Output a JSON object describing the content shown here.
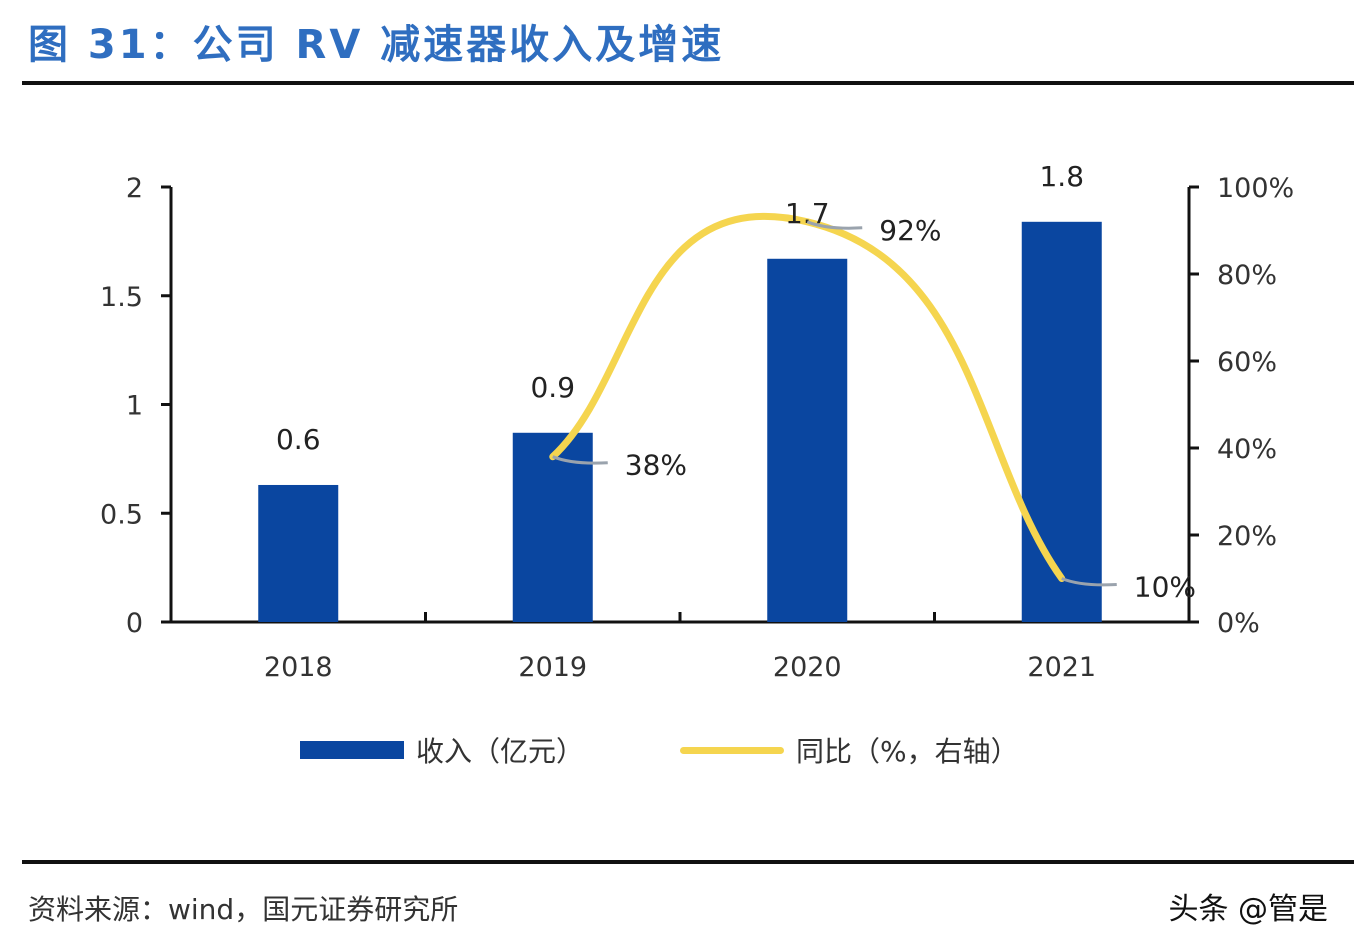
{
  "title": "图 31：公司 RV 减速器收入及增速",
  "chart_data": {
    "type": "bar+line",
    "title": "图 31：公司 RV 减速器收入及增速",
    "categories": [
      "2018",
      "2019",
      "2020",
      "2021"
    ],
    "series": [
      {
        "name": "收入（亿元）",
        "type": "bar",
        "axis": "left",
        "color": "#0a46a0",
        "values": [
          0.63,
          0.87,
          1.67,
          1.84
        ],
        "labels": [
          "0.6",
          "0.9",
          "1.7",
          "1.8"
        ]
      },
      {
        "name": "同比（%，右轴）",
        "type": "line",
        "axis": "right",
        "color": "#f5d54f",
        "smooth": true,
        "values": [
          null,
          38,
          92,
          10
        ],
        "labels": [
          null,
          "38%",
          "92%",
          "10%"
        ]
      }
    ],
    "left_axis": {
      "ylim": [
        0,
        2
      ],
      "ticks": [
        0,
        0.5,
        1,
        1.5,
        2
      ],
      "tick_labels": [
        "0",
        "0.5",
        "1",
        "1.5",
        "2"
      ]
    },
    "right_axis": {
      "ylim": [
        0,
        100
      ],
      "ticks": [
        0,
        20,
        40,
        60,
        80,
        100
      ],
      "tick_labels": [
        "0%",
        "20%",
        "40%",
        "60%",
        "80%",
        "100%"
      ]
    },
    "xlabel": "",
    "ylabel": "",
    "grid": false,
    "legend_position": "bottom"
  },
  "legend": {
    "bar_label": "收入（亿元）",
    "line_label": "同比（%，右轴）"
  },
  "footer": {
    "source": "资料来源：wind，国元证券研究所",
    "watermark": "头条 @管是"
  }
}
